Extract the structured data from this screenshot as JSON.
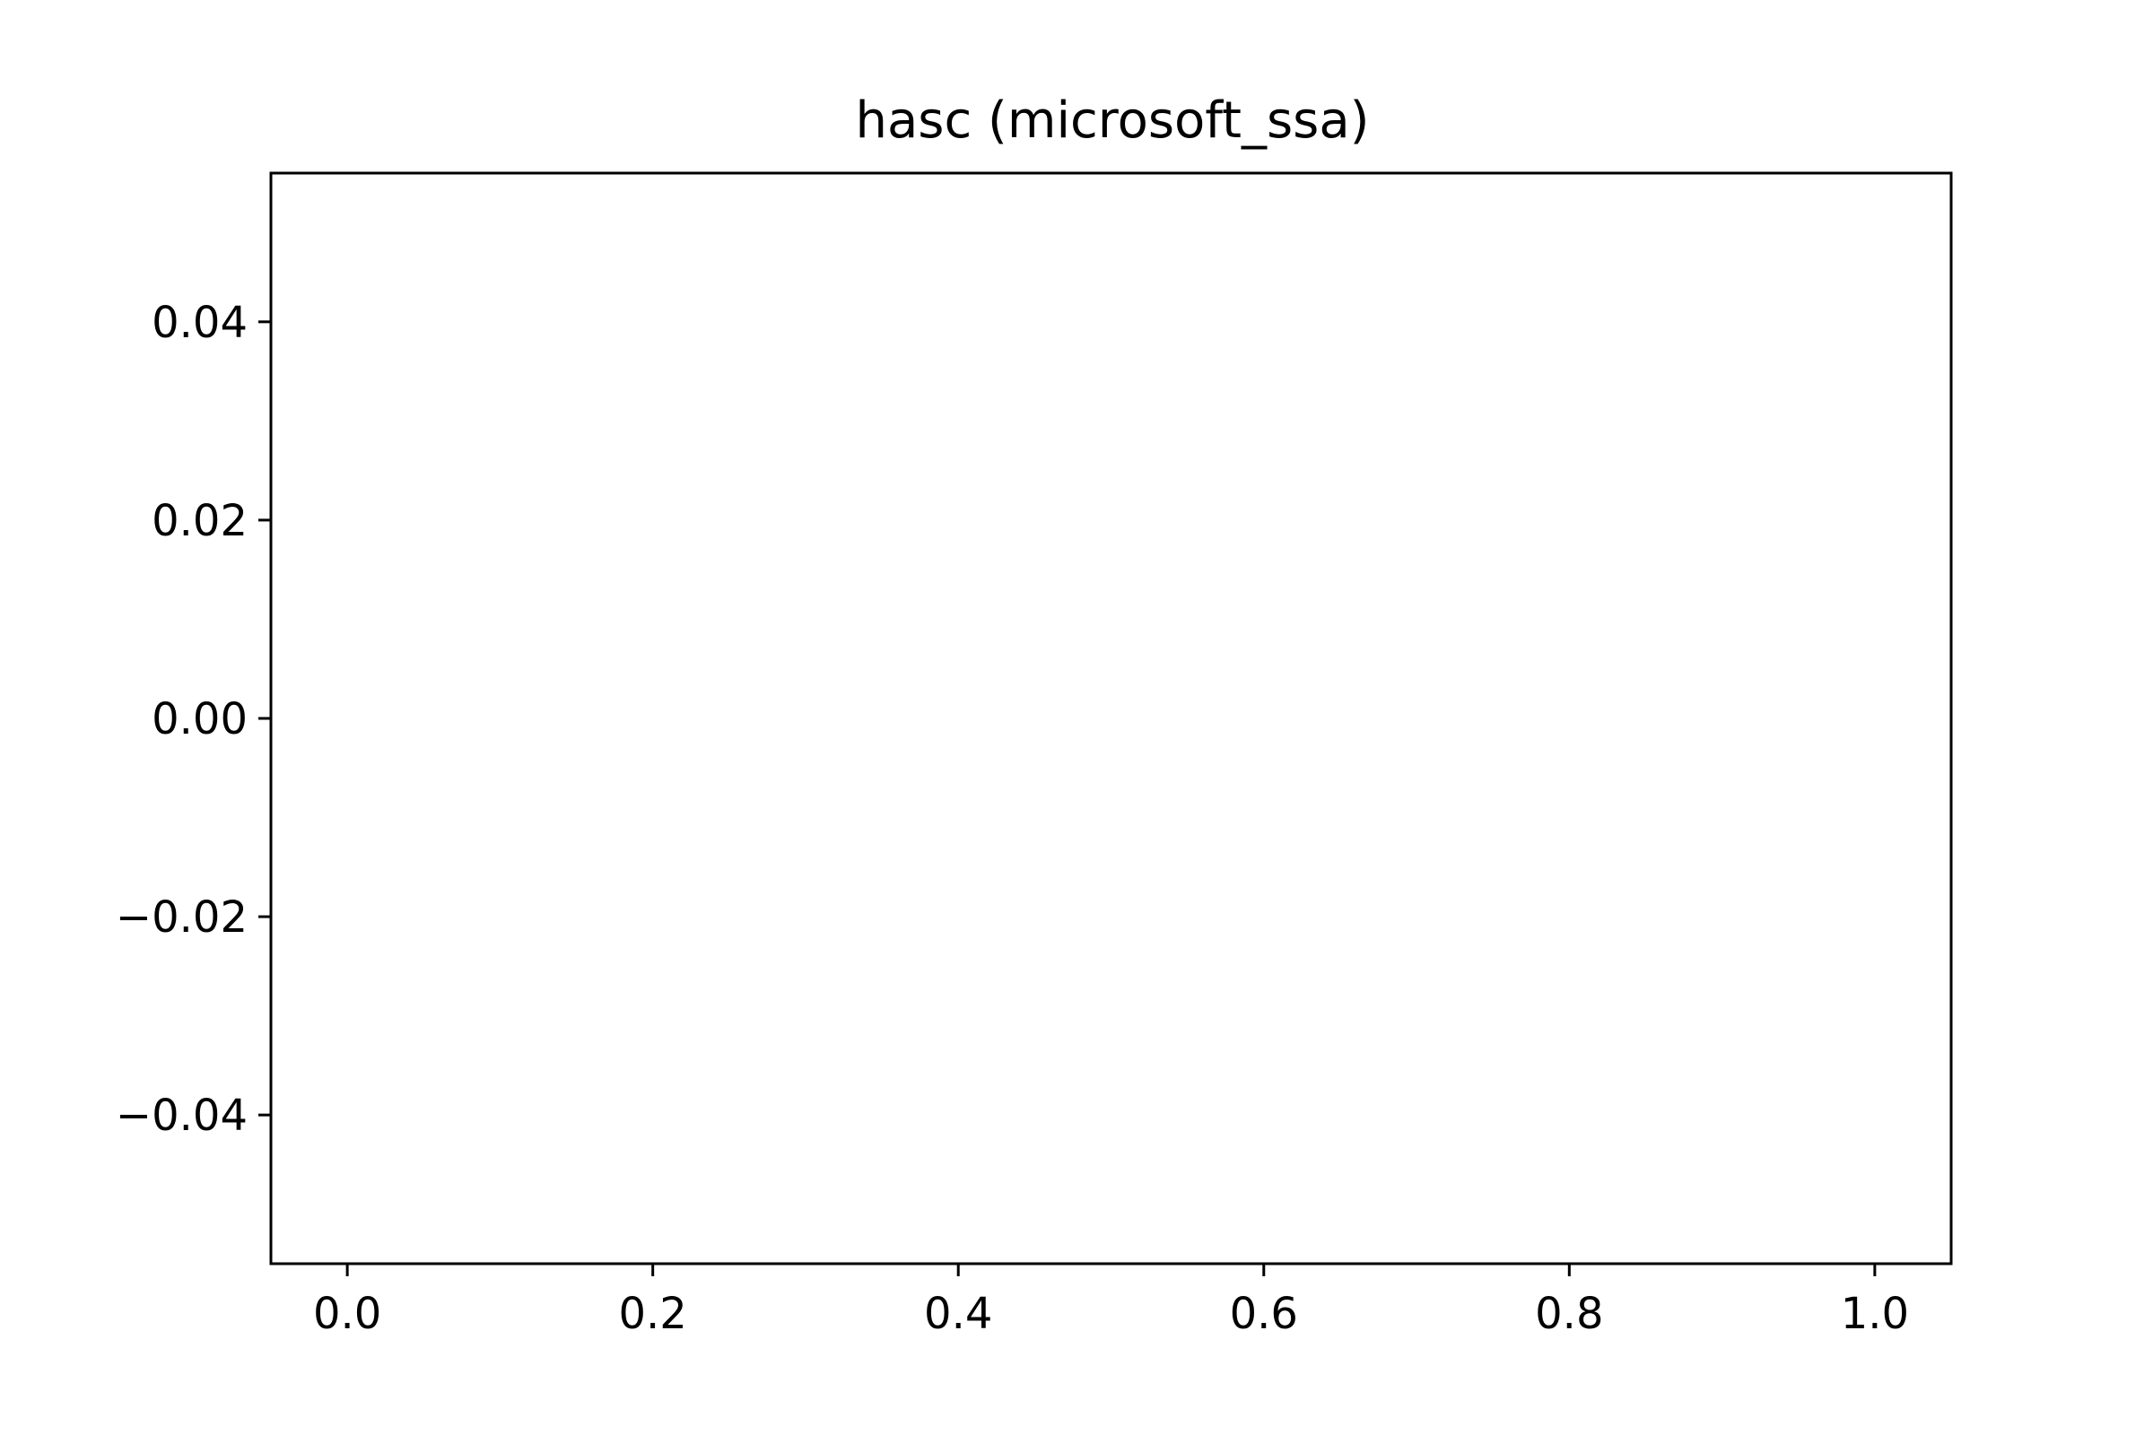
{
  "chart_data": {
    "type": "line",
    "title": "hasc (microsoft_ssa)",
    "xlabel": "",
    "ylabel": "",
    "series": [],
    "xlim": [
      -0.05,
      1.05
    ],
    "ylim": [
      -0.055,
      0.055
    ],
    "x_ticks": [
      0.0,
      0.2,
      0.4,
      0.6,
      0.8,
      1.0
    ],
    "x_tick_labels": [
      "0.0",
      "0.2",
      "0.4",
      "0.6",
      "0.8",
      "1.0"
    ],
    "y_ticks": [
      0.04,
      0.02,
      0.0,
      -0.02,
      -0.04
    ],
    "y_tick_labels": [
      "0.04",
      "0.02",
      "0.00",
      "−0.02",
      "−0.04"
    ],
    "grid": false,
    "legend": "none"
  }
}
